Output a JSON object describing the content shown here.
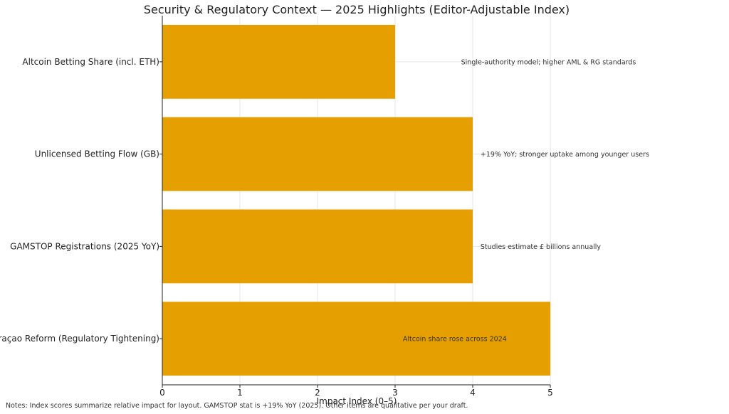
{
  "chart_data": {
    "type": "bar",
    "orientation": "horizontal",
    "title": "Security & Regulatory Context — 2025 Highlights (Editor-Adjustable Index)",
    "xlabel": "Impact Index (0–5)",
    "ylabel": "",
    "xlim": [
      0,
      5
    ],
    "x_ticks": [
      "0",
      "1",
      "2",
      "3",
      "4",
      "5"
    ],
    "grid": true,
    "bar_color": "#E69F00",
    "categories": [
      "Altcoin Betting Share (incl. ETH)",
      "Unlicensed Betting Flow (GB)",
      "GAMSTOP Registrations (2025 YoY)",
      "Curaçao Reform (Regulatory Tightening)"
    ],
    "values": [
      3,
      4,
      4,
      5
    ],
    "annotations": [
      "Single-authority model; higher AML & RG standards",
      "+19% YoY; stronger uptake among younger users",
      "Studies estimate £ billions annually",
      "Altcoin share rose across 2024"
    ]
  },
  "notes": "Notes: Index scores summarize relative impact for layout. GAMSTOP stat is +19% YoY (2025). Other items are qualitative per your draft."
}
